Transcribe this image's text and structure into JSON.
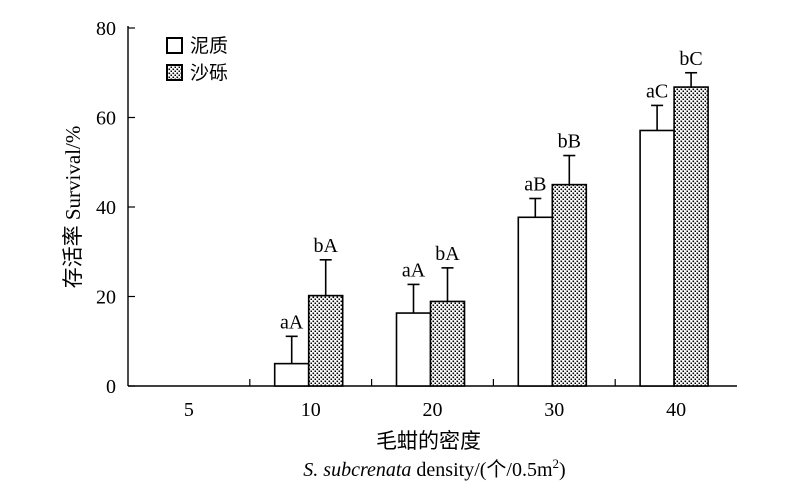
{
  "chart_data": {
    "type": "bar",
    "categories": [
      "5",
      "10",
      "20",
      "30",
      "40"
    ],
    "series": [
      {
        "name": "泥质",
        "fill": "open",
        "values": [
          0,
          5.0,
          16.3,
          37.7,
          57.1
        ],
        "errors": [
          0,
          6.1,
          6.4,
          4.2,
          5.6
        ],
        "labels": [
          "",
          "aA",
          "aA",
          "aB",
          "aC"
        ]
      },
      {
        "name": "沙砾",
        "fill": "dotted",
        "values": [
          0,
          20.2,
          18.9,
          45.0,
          66.8
        ],
        "errors": [
          0,
          8.0,
          7.5,
          6.5,
          3.2
        ],
        "labels": [
          "",
          "bA",
          "bA",
          "bB",
          "bC"
        ]
      }
    ],
    "ylabel": "存活率 Survival/%",
    "xlabel_cn": "毛蚶的密度",
    "xlabel_en_italic": "S. subcrenata",
    "xlabel_en_rest": " density/(个/0.5m",
    "xlabel_en_sup": "2",
    "xlabel_en_end": ")",
    "ylim": [
      0,
      80
    ],
    "yticks": [
      0,
      20,
      40,
      60,
      80
    ],
    "legend_position": "top-left",
    "grid": false
  }
}
